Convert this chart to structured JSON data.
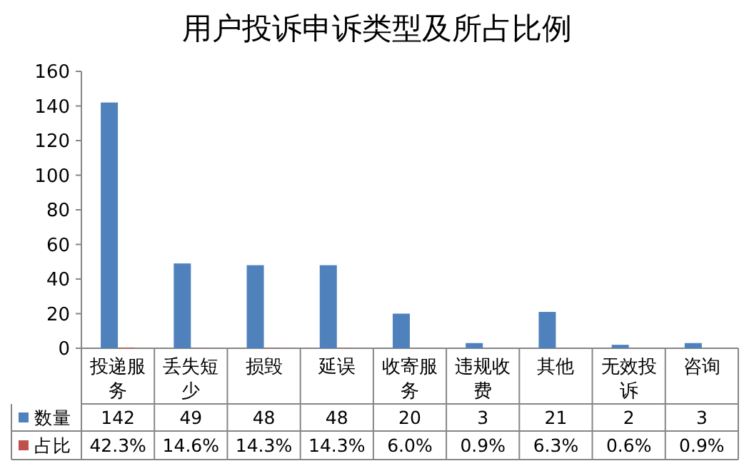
{
  "chart_data": {
    "type": "bar",
    "title": "用户投诉申诉类型及所占比例",
    "categories": [
      "投递服务",
      "丢失短少",
      "损毁",
      "延误",
      "收寄服务",
      "违规收费",
      "其他",
      "无效投诉",
      "咨询"
    ],
    "series": [
      {
        "name": "数量",
        "color": "#4f81bd",
        "values": [
          142,
          49,
          48,
          48,
          20,
          3,
          21,
          2,
          3
        ],
        "value_labels": [
          "142",
          "49",
          "48",
          "48",
          "20",
          "3",
          "21",
          "2",
          "3"
        ]
      },
      {
        "name": "占比",
        "color": "#c0504d",
        "values": [
          0.423,
          0.146,
          0.143,
          0.143,
          0.06,
          0.009,
          0.063,
          0.006,
          0.009
        ],
        "value_labels": [
          "42.3%",
          "14.6%",
          "14.3%",
          "14.3%",
          "6.0%",
          "0.9%",
          "6.3%",
          "0.6%",
          "0.9%"
        ]
      }
    ],
    "ylim": [
      0,
      160
    ],
    "yticks": [
      0,
      20,
      40,
      60,
      80,
      100,
      120,
      140,
      160
    ],
    "grid": false,
    "legend": "bottom"
  }
}
